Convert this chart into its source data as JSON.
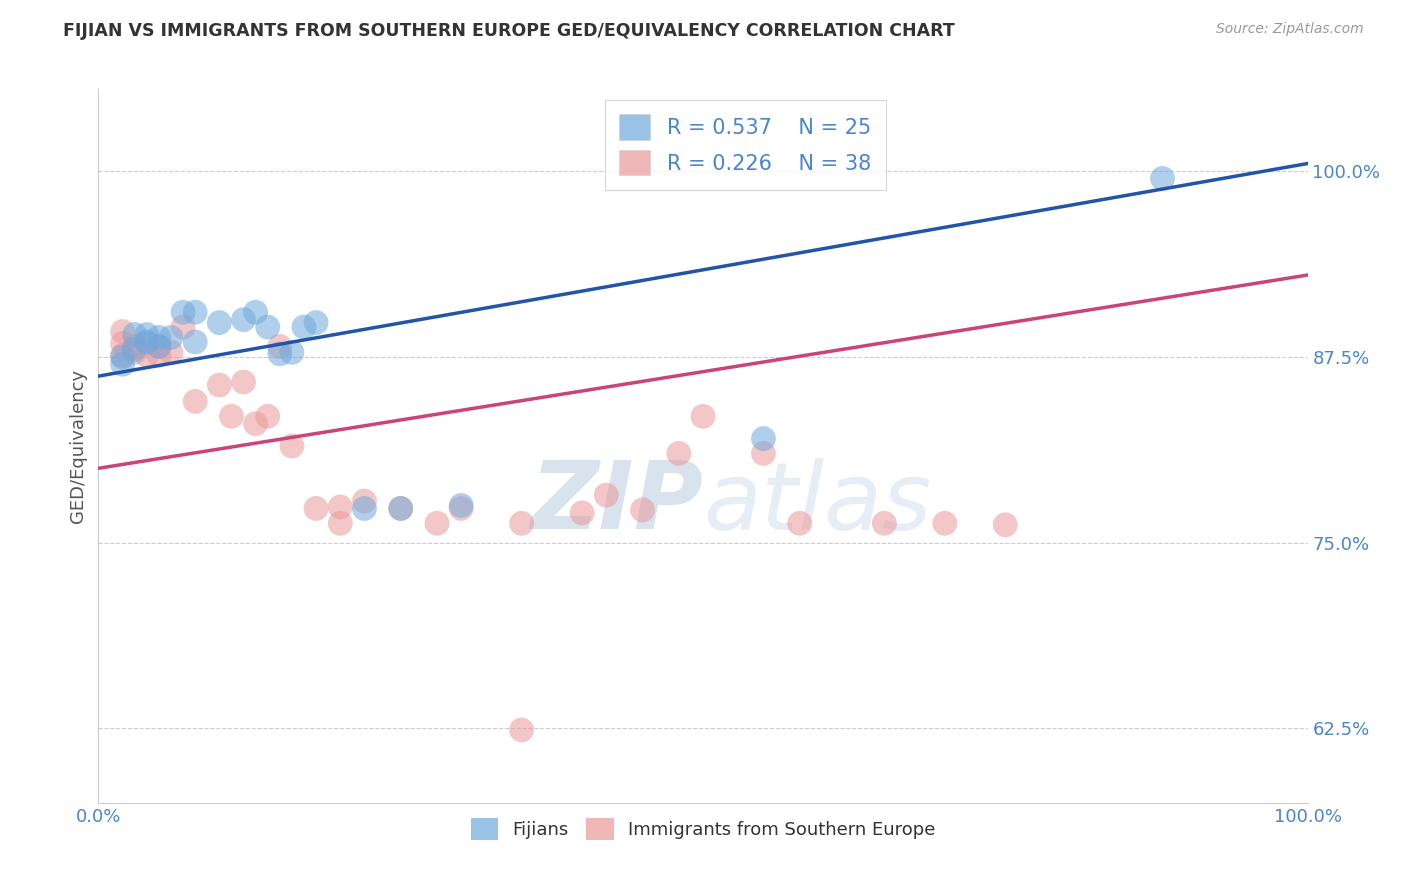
{
  "title": "FIJIAN VS IMMIGRANTS FROM SOUTHERN EUROPE GED/EQUIVALENCY CORRELATION CHART",
  "source_text": "Source: ZipAtlas.com",
  "ylabel": "GED/Equivalency",
  "xlim": [
    0.0,
    1.0
  ],
  "ylim": [
    0.575,
    1.055
  ],
  "yticks": [
    0.625,
    0.75,
    0.875,
    1.0
  ],
  "ytick_labels": [
    "62.5%",
    "75.0%",
    "87.5%",
    "100.0%"
  ],
  "xticks": [
    0.0,
    1.0
  ],
  "xtick_labels": [
    "0.0%",
    "100.0%"
  ],
  "fijian_color": "#6fa8dc",
  "immigrant_color": "#ea9999",
  "fijian_R": 0.537,
  "fijian_N": 25,
  "immigrant_R": 0.226,
  "immigrant_N": 38,
  "fijian_line_color": "#2255aa",
  "immigrant_line_color": "#cc4477",
  "legend_label_blue": "Fijians",
  "legend_label_pink": "Immigrants from Southern Europe",
  "fijian_line_x0": 0.0,
  "fijian_line_y0": 0.862,
  "fijian_line_x1": 1.0,
  "fijian_line_y1": 1.005,
  "immigrant_line_x0": 0.0,
  "immigrant_line_y0": 0.8,
  "immigrant_line_x1": 1.0,
  "immigrant_line_y1": 0.93,
  "fijian_points_x": [
    0.02,
    0.02,
    0.03,
    0.03,
    0.04,
    0.04,
    0.05,
    0.05,
    0.06,
    0.07,
    0.08,
    0.08,
    0.1,
    0.12,
    0.13,
    0.14,
    0.15,
    0.16,
    0.17,
    0.18,
    0.22,
    0.25,
    0.3,
    0.55,
    0.88
  ],
  "fijian_points_y": [
    0.87,
    0.875,
    0.88,
    0.89,
    0.885,
    0.89,
    0.882,
    0.888,
    0.888,
    0.905,
    0.885,
    0.905,
    0.898,
    0.9,
    0.905,
    0.895,
    0.877,
    0.878,
    0.895,
    0.898,
    0.773,
    0.773,
    0.775,
    0.82,
    0.995
  ],
  "immigrant_points_x": [
    0.02,
    0.02,
    0.02,
    0.03,
    0.03,
    0.04,
    0.04,
    0.05,
    0.05,
    0.06,
    0.07,
    0.08,
    0.1,
    0.11,
    0.12,
    0.13,
    0.14,
    0.15,
    0.16,
    0.18,
    0.2,
    0.2,
    0.22,
    0.25,
    0.28,
    0.3,
    0.35,
    0.4,
    0.42,
    0.45,
    0.48,
    0.5,
    0.55,
    0.58,
    0.65,
    0.7,
    0.75,
    0.35
  ],
  "immigrant_points_y": [
    0.876,
    0.884,
    0.892,
    0.878,
    0.882,
    0.876,
    0.884,
    0.876,
    0.882,
    0.878,
    0.895,
    0.845,
    0.856,
    0.835,
    0.858,
    0.83,
    0.835,
    0.882,
    0.815,
    0.773,
    0.763,
    0.774,
    0.778,
    0.773,
    0.763,
    0.773,
    0.763,
    0.77,
    0.782,
    0.772,
    0.81,
    0.835,
    0.81,
    0.763,
    0.763,
    0.763,
    0.762,
    0.624
  ],
  "background_color": "#ffffff",
  "grid_color": "#cccccc",
  "tick_color": "#4a86c8",
  "title_color": "#333333",
  "source_color": "#999999"
}
